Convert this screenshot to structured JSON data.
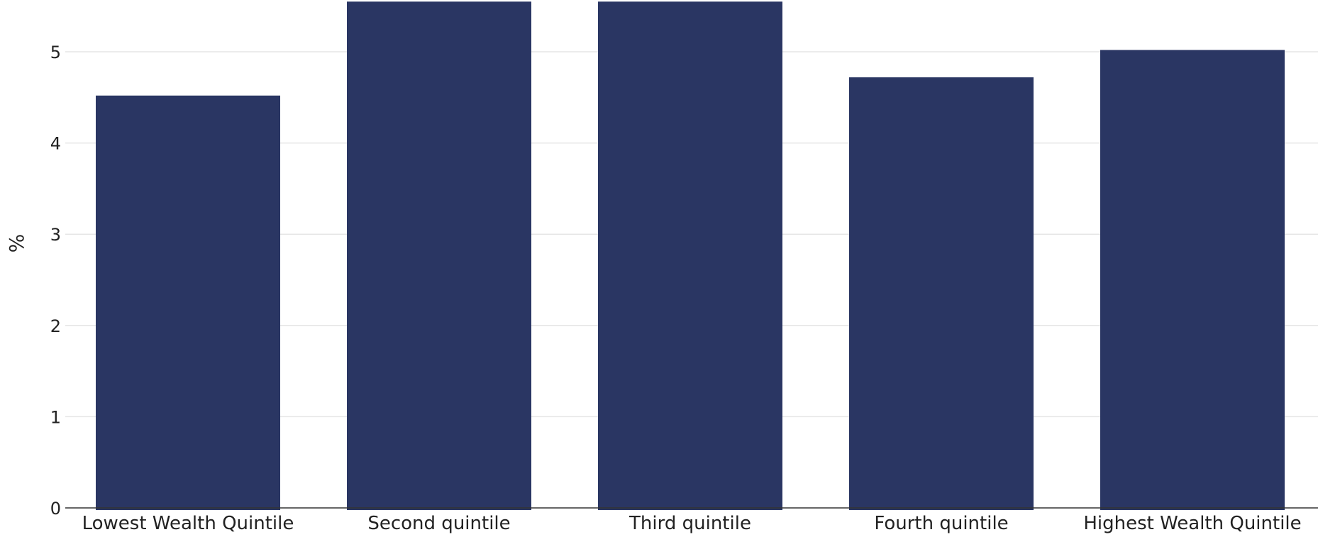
{
  "chart_data": {
    "type": "bar",
    "title": "",
    "xlabel": "",
    "ylabel": "%",
    "categories": [
      "Lowest Wealth Quintile",
      "Second quintile",
      "Third quintile",
      "Fourth quintile",
      "Highest Wealth Quintile"
    ],
    "values": [
      4.52,
      5.55,
      5.55,
      4.72,
      5.02
    ],
    "ylim": [
      0,
      5.55
    ],
    "yticks": [
      0,
      1,
      2,
      3,
      4,
      5
    ],
    "grid": true,
    "legend": "none",
    "colors": {
      "bar": "#2a3663",
      "grid": "#e6e6e6",
      "axis": "#333333"
    }
  }
}
